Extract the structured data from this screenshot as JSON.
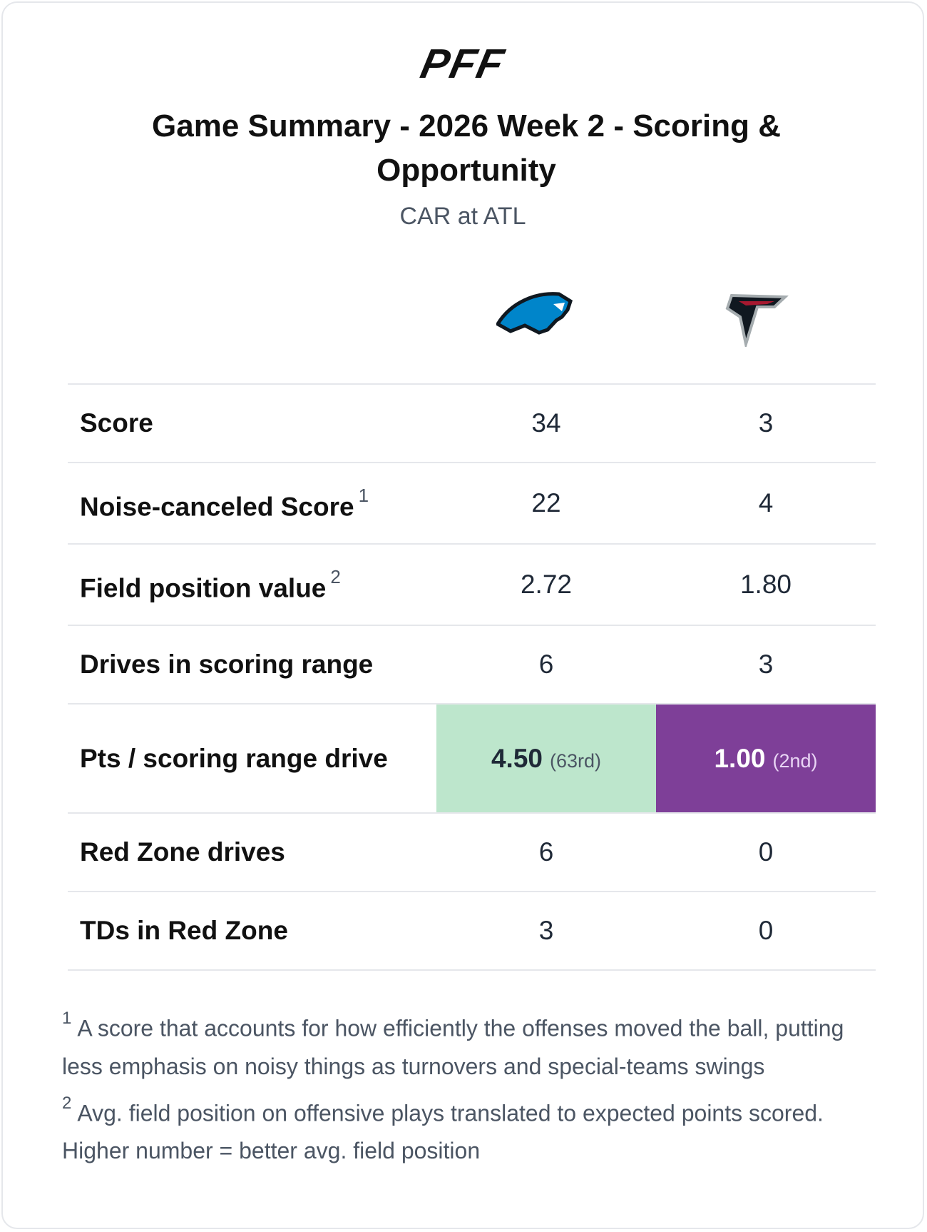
{
  "header": {
    "logo": "PFF",
    "title": "Game Summary - 2026 Week 2 - Scoring & Opportunity",
    "subtitle": "CAR at ATL"
  },
  "table": {
    "rows": [
      {
        "label": "Score",
        "values": [
          "34",
          "3"
        ]
      },
      {
        "label": "Noise-canceled Score",
        "note": "1",
        "values": [
          "22",
          "4"
        ]
      },
      {
        "label": "Field position value",
        "note": "2",
        "values": [
          "2.72",
          "1.80"
        ]
      },
      {
        "label": "Drives in scoring range",
        "values": [
          "6",
          "3"
        ]
      },
      {
        "label": "Pts / scoring range drive",
        "values": [
          "4.50",
          "1.00"
        ],
        "ranks": [
          "(63rd)",
          "(2nd)"
        ]
      },
      {
        "label": "Red Zone drives",
        "values": [
          "6",
          "0"
        ]
      },
      {
        "label": "TDs in Red Zone",
        "values": [
          "3",
          "0"
        ]
      }
    ]
  },
  "footnotes": [
    {
      "marker": "1",
      "text": "A score that accounts for how efficiently the offenses moved the ball, putting less emphasis on noisy things as turnovers and special-teams swings"
    },
    {
      "marker": "2",
      "text": "Avg. field position on offensive plays translated to expected points scored. Higher number = better avg. field position"
    }
  ]
}
